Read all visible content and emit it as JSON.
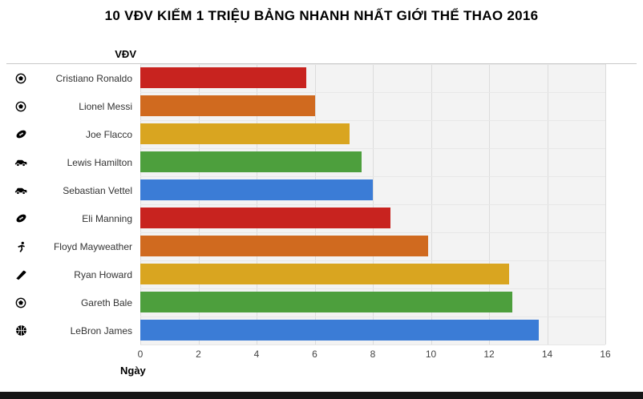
{
  "title": "10 VĐV KIẾM 1 TRIỆU BẢNG NHANH NHẤT GIỚI THỂ THAO 2016",
  "chart_data": {
    "type": "bar",
    "orientation": "horizontal",
    "title": "10 VĐV KIẾM 1 TRIỆU BẢNG NHANH NHẤT GIỚI THỂ THAO 2016",
    "ylabel": "VĐV",
    "xlabel": "Ngày",
    "xlim": [
      0,
      16
    ],
    "xticks": [
      0,
      2,
      4,
      6,
      8,
      10,
      12,
      14,
      16
    ],
    "grid": true,
    "legend": "none",
    "categories": [
      "Cristiano Ronaldo",
      "Lionel Messi",
      "Joe Flacco",
      "Lewis Hamilton",
      "Sebastian Vettel",
      "Eli Manning",
      "Floyd Mayweather",
      "Ryan Howard",
      "Gareth Bale",
      "LeBron James"
    ],
    "values": [
      5.7,
      6.0,
      7.2,
      7.6,
      8.0,
      8.6,
      9.9,
      12.7,
      12.8,
      13.7
    ],
    "icons": [
      "soccer-ball",
      "soccer-ball",
      "american-football",
      "car",
      "car",
      "american-football",
      "boxing-athlete",
      "baseball-bat",
      "soccer-ball",
      "basketball"
    ],
    "palette": [
      "#c8231f",
      "#d06a1f",
      "#d9a520",
      "#4d9f3d",
      "#3b7cd6"
    ]
  },
  "colors": {
    "plot_background": "#f3f3f3",
    "gridline": "#dcdcdc",
    "title_text": "#000000",
    "label_text": "#333333",
    "footer_bar": "#161616"
  }
}
